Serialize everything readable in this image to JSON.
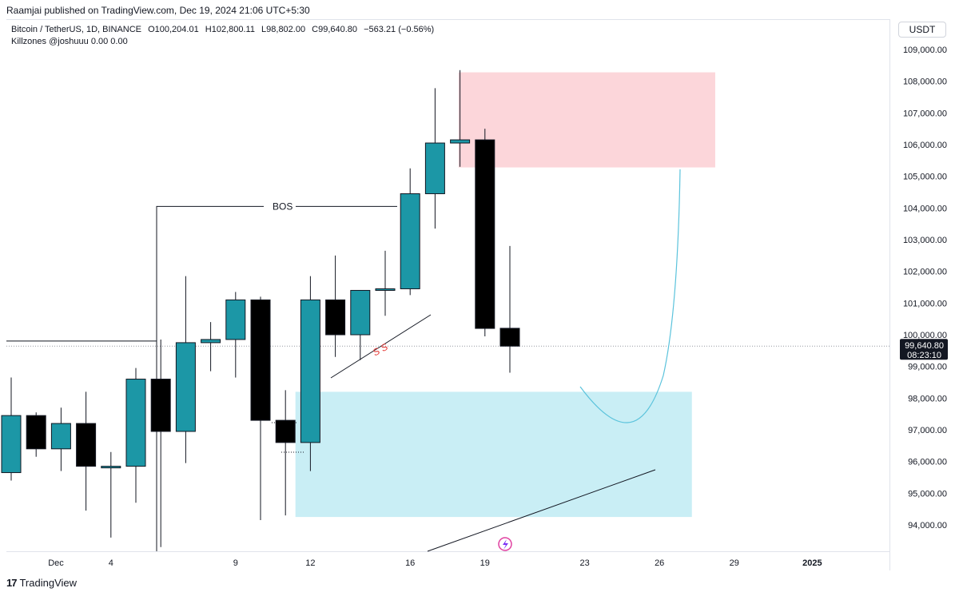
{
  "header": {
    "published": "Raamjai published on TradingView.com, Dec 19, 2024 21:06 UTC+5:30"
  },
  "legend": {
    "symbol": "Bitcoin / TetherUS, 1D, BINANCE",
    "open": "O100,204.01",
    "high": "H102,800.11",
    "low": "L98,802.00",
    "close": "C99,640.80",
    "change": "−563.21 (−0.56%)",
    "indicator": "Killzones @joshuuu  0.00  0.00"
  },
  "currency": "USDT",
  "footer": {
    "brand": "TradingView",
    "logo": "17"
  },
  "colors": {
    "bull": "#1c97a6",
    "bear": "#000000",
    "supply_zone": "#fcd6da",
    "demand_zone": "#c9eef5",
    "projection": "#5bc3dc",
    "ss_label": "#e53935",
    "price_label_bg": "#131722"
  },
  "chart_data": {
    "type": "candlestick",
    "y_axis_ticks": [
      94000,
      95000,
      96000,
      97000,
      98000,
      99000,
      100000,
      101000,
      102000,
      103000,
      104000,
      105000,
      106000,
      107000,
      108000,
      109000
    ],
    "y_tick_labels": [
      "94,000.00",
      "95,000.00",
      "96,000.00",
      "97,000.00",
      "98,000.00",
      "99,000.00",
      "100,000.00",
      "101,000.00",
      "102,000.00",
      "103,000.00",
      "104,000.00",
      "105,000.00",
      "106,000.00",
      "107,000.00",
      "108,000.00",
      "109,000.00"
    ],
    "ylim": [
      93200,
      109800
    ],
    "x_ticks": [
      {
        "index": 2,
        "label": "Dec"
      },
      {
        "index": 5,
        "label": "4"
      },
      {
        "index": 10,
        "label": "9"
      },
      {
        "index": 13,
        "label": "12"
      },
      {
        "index": 17,
        "label": "16"
      },
      {
        "index": 20,
        "label": "19"
      },
      {
        "index": 24,
        "label": "23"
      },
      {
        "index": 27,
        "label": "26"
      },
      {
        "index": 30,
        "label": "29"
      },
      {
        "index": 33,
        "label": "2025"
      }
    ],
    "candles": [
      {
        "o": 95650,
        "h": 98650,
        "l": 95400,
        "c": 97450
      },
      {
        "o": 97450,
        "h": 97550,
        "l": 96150,
        "c": 96400
      },
      {
        "o": 96400,
        "h": 97700,
        "l": 95700,
        "c": 97200
      },
      {
        "o": 97200,
        "h": 98200,
        "l": 94450,
        "c": 95850
      },
      {
        "o": 95850,
        "h": 96300,
        "l": 93600,
        "c": 95850
      },
      {
        "o": 95850,
        "h": 98950,
        "l": 94700,
        "c": 98600
      },
      {
        "o": 98600,
        "h": 99850,
        "l": 93300,
        "c": 96950
      },
      {
        "o": 96950,
        "h": 101850,
        "l": 95950,
        "c": 99750
      },
      {
        "o": 99750,
        "h": 100400,
        "l": 98850,
        "c": 99850
      },
      {
        "o": 99850,
        "h": 101350,
        "l": 98650,
        "c": 101100
      },
      {
        "o": 101100,
        "h": 101200,
        "l": 94150,
        "c": 97300
      },
      {
        "o": 97300,
        "h": 98250,
        "l": 94300,
        "c": 96600
      },
      {
        "o": 96600,
        "h": 101850,
        "l": 95700,
        "c": 101100
      },
      {
        "o": 101100,
        "h": 102500,
        "l": 99300,
        "c": 100000
      },
      {
        "o": 100000,
        "h": 101400,
        "l": 99200,
        "c": 101400
      },
      {
        "o": 101400,
        "h": 102650,
        "l": 100600,
        "c": 101450
      },
      {
        "o": 101450,
        "h": 105250,
        "l": 101250,
        "c": 104450
      },
      {
        "o": 104450,
        "h": 107780,
        "l": 103350,
        "c": 106050
      },
      {
        "o": 106050,
        "h": 108350,
        "l": 105300,
        "c": 106150
      },
      {
        "o": 106150,
        "h": 106500,
        "l": 99950,
        "c": 100200
      },
      {
        "o": 100204.01,
        "h": 102800.11,
        "l": 98802.0,
        "c": 99640.8
      }
    ],
    "last_price": {
      "value": 99640.8,
      "label": "99,640.80",
      "countdown": "08:23:10"
    },
    "annotations": {
      "bos_label": "BOS",
      "bos_level": 104050,
      "ss_label": "S S",
      "supply_zone": {
        "from_index": 18,
        "to_index": 28.3,
        "low": 105280,
        "high": 108280
      },
      "demand_zone": {
        "from_index": 11.4,
        "to_index": 27.3,
        "low": 94250,
        "high": 98200
      }
    }
  }
}
